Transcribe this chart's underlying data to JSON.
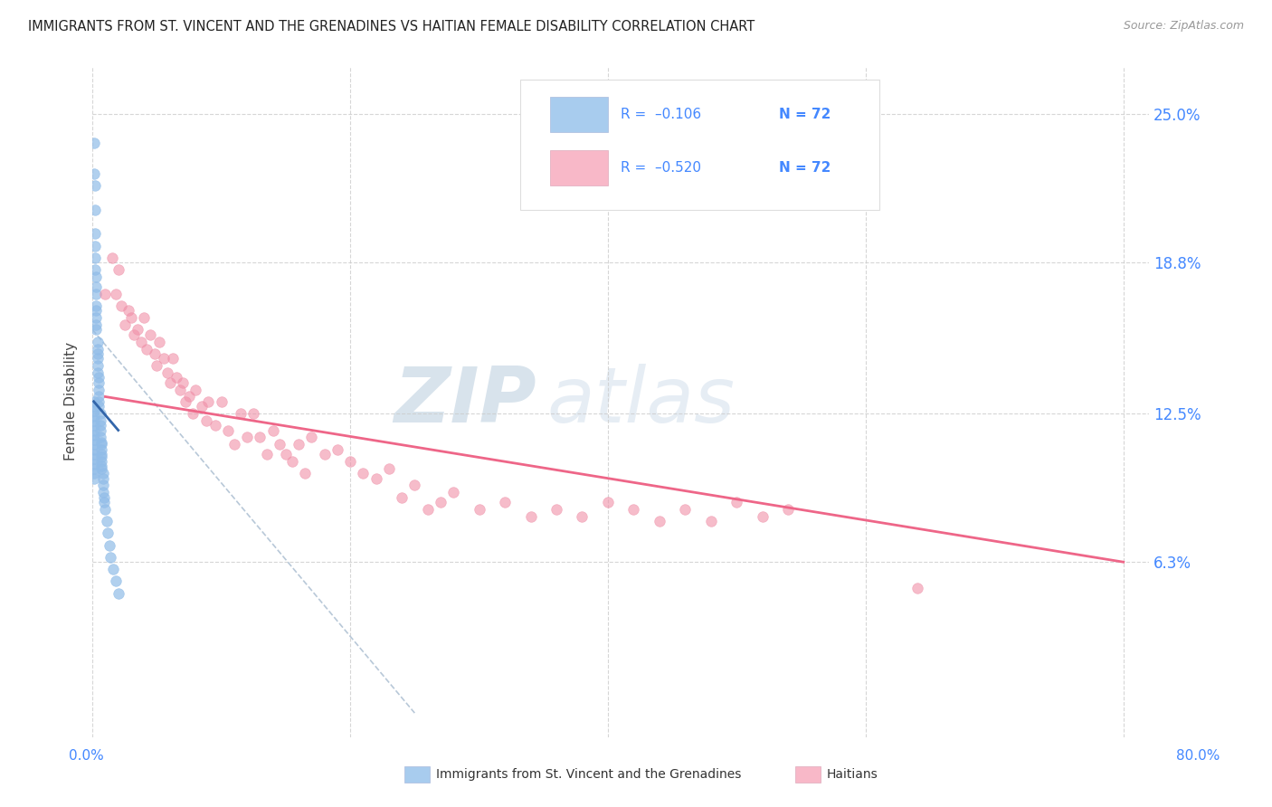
{
  "title": "IMMIGRANTS FROM ST. VINCENT AND THE GRENADINES VS HAITIAN FEMALE DISABILITY CORRELATION CHART",
  "source": "Source: ZipAtlas.com",
  "ylabel": "Female Disability",
  "y_ticks": [
    0.063,
    0.125,
    0.188,
    0.25
  ],
  "y_tick_labels": [
    "6.3%",
    "12.5%",
    "18.8%",
    "25.0%"
  ],
  "watermark_zip": "ZIP",
  "watermark_atlas": "atlas",
  "blue_dot_color": "#90bce8",
  "pink_dot_color": "#f090a8",
  "blue_line_color": "#3366aa",
  "pink_line_color": "#ee6688",
  "dashed_line_color": "#b8c8d8",
  "axis_label_color": "#4488ff",
  "title_color": "#222222",
  "blue_legend_color": "#a8ccee",
  "pink_legend_color": "#f8b8c8",
  "blue_scatter_x": [
    0.001,
    0.001,
    0.002,
    0.002,
    0.002,
    0.002,
    0.002,
    0.002,
    0.003,
    0.003,
    0.003,
    0.003,
    0.003,
    0.003,
    0.003,
    0.003,
    0.004,
    0.004,
    0.004,
    0.004,
    0.004,
    0.004,
    0.005,
    0.005,
    0.005,
    0.005,
    0.005,
    0.005,
    0.006,
    0.006,
    0.006,
    0.006,
    0.006,
    0.007,
    0.007,
    0.007,
    0.007,
    0.007,
    0.007,
    0.007,
    0.007,
    0.008,
    0.008,
    0.008,
    0.008,
    0.009,
    0.009,
    0.01,
    0.011,
    0.012,
    0.013,
    0.014,
    0.016,
    0.018,
    0.02,
    0.001,
    0.001,
    0.001,
    0.001,
    0.001,
    0.001,
    0.001,
    0.001,
    0.001,
    0.001,
    0.001,
    0.001,
    0.001,
    0.001,
    0.001,
    0.001,
    0.001
  ],
  "blue_scatter_y": [
    0.238,
    0.225,
    0.22,
    0.21,
    0.2,
    0.195,
    0.19,
    0.185,
    0.182,
    0.178,
    0.175,
    0.17,
    0.168,
    0.165,
    0.162,
    0.16,
    0.155,
    0.152,
    0.15,
    0.148,
    0.145,
    0.142,
    0.14,
    0.138,
    0.135,
    0.132,
    0.13,
    0.128,
    0.125,
    0.122,
    0.12,
    0.118,
    0.115,
    0.113,
    0.112,
    0.11,
    0.108,
    0.107,
    0.105,
    0.103,
    0.102,
    0.1,
    0.098,
    0.095,
    0.092,
    0.09,
    0.088,
    0.085,
    0.08,
    0.075,
    0.07,
    0.065,
    0.06,
    0.055,
    0.05,
    0.13,
    0.128,
    0.126,
    0.124,
    0.122,
    0.12,
    0.118,
    0.116,
    0.114,
    0.112,
    0.11,
    0.108,
    0.106,
    0.104,
    0.102,
    0.1,
    0.098
  ],
  "pink_scatter_x": [
    0.01,
    0.015,
    0.018,
    0.02,
    0.022,
    0.025,
    0.028,
    0.03,
    0.032,
    0.035,
    0.038,
    0.04,
    0.042,
    0.045,
    0.048,
    0.05,
    0.052,
    0.055,
    0.058,
    0.06,
    0.062,
    0.065,
    0.068,
    0.07,
    0.072,
    0.075,
    0.078,
    0.08,
    0.085,
    0.088,
    0.09,
    0.095,
    0.1,
    0.105,
    0.11,
    0.115,
    0.12,
    0.125,
    0.13,
    0.135,
    0.14,
    0.145,
    0.15,
    0.155,
    0.16,
    0.165,
    0.17,
    0.18,
    0.19,
    0.2,
    0.21,
    0.22,
    0.23,
    0.24,
    0.25,
    0.26,
    0.27,
    0.28,
    0.3,
    0.32,
    0.34,
    0.36,
    0.38,
    0.4,
    0.42,
    0.44,
    0.46,
    0.48,
    0.5,
    0.52,
    0.54,
    0.64
  ],
  "pink_scatter_y": [
    0.175,
    0.19,
    0.175,
    0.185,
    0.17,
    0.162,
    0.168,
    0.165,
    0.158,
    0.16,
    0.155,
    0.165,
    0.152,
    0.158,
    0.15,
    0.145,
    0.155,
    0.148,
    0.142,
    0.138,
    0.148,
    0.14,
    0.135,
    0.138,
    0.13,
    0.132,
    0.125,
    0.135,
    0.128,
    0.122,
    0.13,
    0.12,
    0.13,
    0.118,
    0.112,
    0.125,
    0.115,
    0.125,
    0.115,
    0.108,
    0.118,
    0.112,
    0.108,
    0.105,
    0.112,
    0.1,
    0.115,
    0.108,
    0.11,
    0.105,
    0.1,
    0.098,
    0.102,
    0.09,
    0.095,
    0.085,
    0.088,
    0.092,
    0.085,
    0.088,
    0.082,
    0.085,
    0.082,
    0.088,
    0.085,
    0.08,
    0.085,
    0.08,
    0.088,
    0.082,
    0.085,
    0.052
  ],
  "blue_line_x": [
    0.001,
    0.02
  ],
  "blue_line_y": [
    0.13,
    0.118
  ],
  "pink_line_x": [
    0.01,
    0.8
  ],
  "pink_line_y": [
    0.132,
    0.063
  ],
  "dash_line_x": [
    0.0,
    0.25
  ],
  "dash_line_y": [
    0.16,
    0.0
  ],
  "xlim": [
    0.0,
    0.82
  ],
  "ylim": [
    -0.01,
    0.27
  ]
}
